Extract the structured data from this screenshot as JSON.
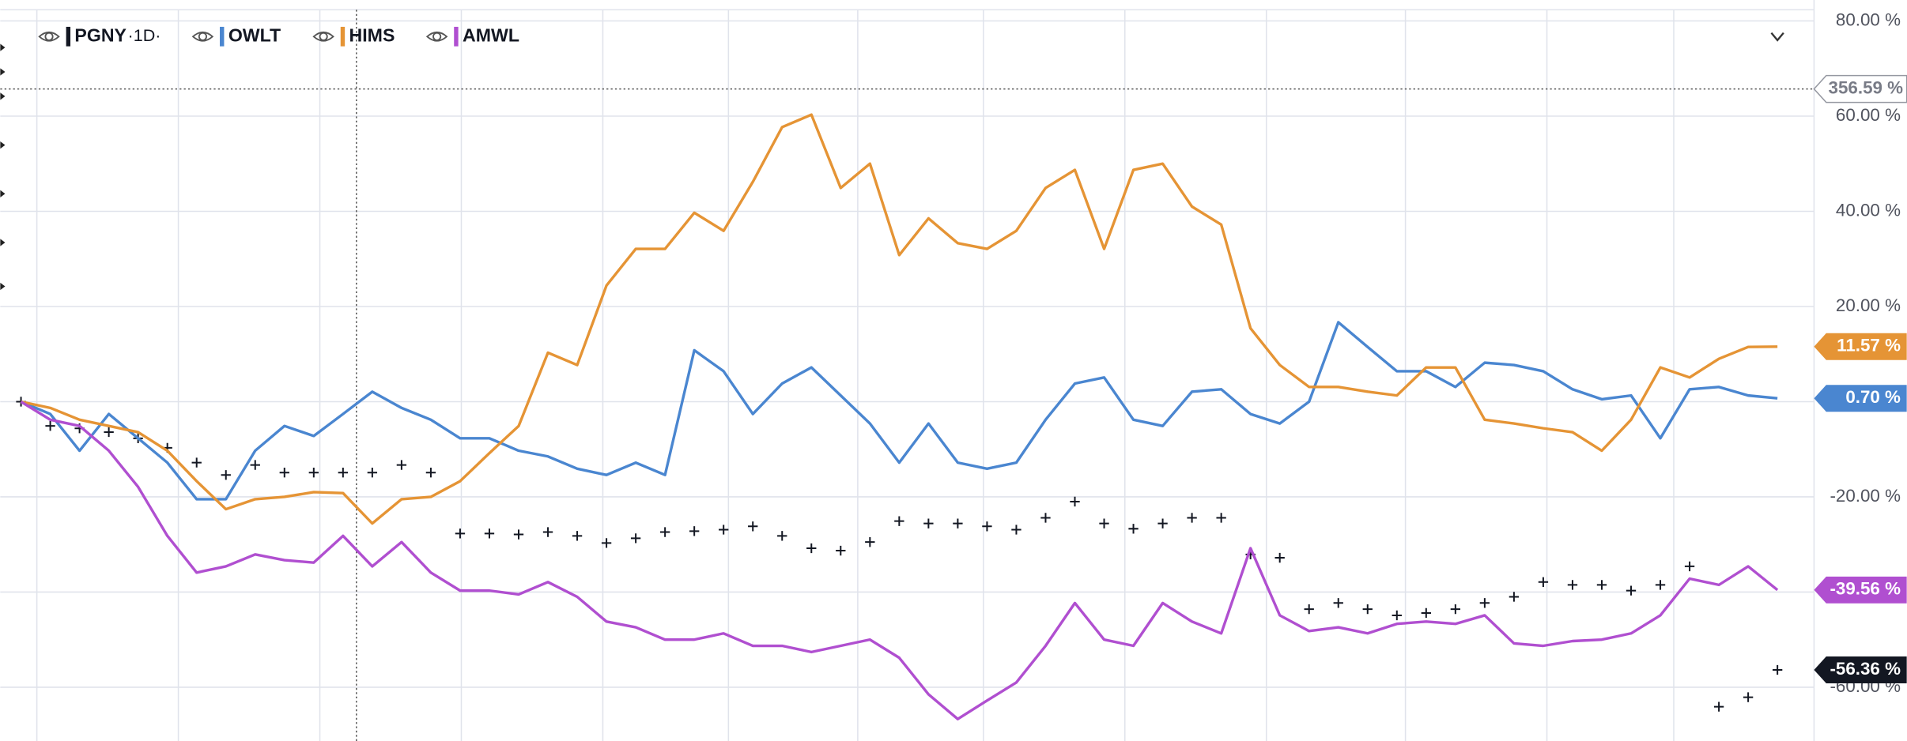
{
  "chart_data": {
    "type": "line",
    "interval": "·1D·",
    "crosshair_label": "356.59 %",
    "x": [
      0,
      1,
      2,
      3,
      4,
      5,
      6,
      7,
      8,
      9,
      10,
      11,
      12,
      13,
      14,
      15,
      16,
      17,
      18,
      19,
      20,
      21,
      22,
      23,
      24,
      25,
      26,
      27,
      28,
      29,
      30,
      31,
      32,
      33,
      34,
      35,
      36,
      37,
      38,
      39,
      40,
      41,
      42,
      43,
      44,
      45,
      46,
      47,
      48,
      49,
      50,
      51,
      52,
      53,
      54,
      55,
      56,
      57,
      58,
      59,
      60
    ],
    "xlim": [
      0,
      60
    ],
    "ylim": [
      -71.3,
      84.4
    ],
    "yticks": [
      {
        "value": 80,
        "label": "80.00 %"
      },
      {
        "value": 60,
        "label": "60.00 %"
      },
      {
        "value": 40,
        "label": "40.00 %"
      },
      {
        "value": 20,
        "label": "20.00 %"
      },
      {
        "value": 0,
        "label": "0.00 %"
      },
      {
        "value": -20,
        "label": "-20.00 %"
      },
      {
        "value": -40,
        "label": "-40.00 %"
      },
      {
        "value": -60,
        "label": "-60.00 %"
      }
    ],
    "grid": true,
    "series": [
      {
        "name": "PGNY",
        "color": "#131722",
        "style": "ticks",
        "last_value_label": "-56.36 %",
        "values": [
          0,
          -5.1,
          -5.6,
          -6.4,
          -7.7,
          -9.7,
          -12.8,
          -15.4,
          -13.3,
          -14.9,
          -14.9,
          -14.9,
          -14.9,
          -13.3,
          -14.9,
          -27.7,
          -27.7,
          -27.9,
          -27.4,
          -28.2,
          -29.7,
          -28.7,
          -27.4,
          -27.2,
          -26.9,
          -26.2,
          -28.2,
          -30.8,
          -31.3,
          -29.5,
          -25.1,
          -25.6,
          -25.6,
          -26.2,
          -26.9,
          -24.4,
          -21,
          -25.6,
          -26.7,
          -25.6,
          -24.4,
          -24.4,
          -32.1,
          -32.8,
          -43.6,
          -42.3,
          -43.6,
          -44.9,
          -44.4,
          -43.6,
          -42.3,
          -41,
          -37.9,
          -38.5,
          -38.5,
          -39.7,
          -38.5,
          -34.6,
          -64.1,
          -62.1,
          -56.36
        ]
      },
      {
        "name": "OWLT",
        "color": "#4a86d0",
        "style": "line",
        "last_value_label": "0.70 %",
        "values": [
          0,
          -2.6,
          -10.3,
          -2.6,
          -7.7,
          -12.8,
          -20.5,
          -20.5,
          -10.3,
          -5.1,
          -7.2,
          -2.6,
          2.1,
          -1.3,
          -3.8,
          -7.7,
          -7.7,
          -10.3,
          -11.5,
          -14.1,
          -15.4,
          -12.8,
          -15.4,
          10.8,
          6.4,
          -2.6,
          3.8,
          7.2,
          1.3,
          -4.6,
          -12.8,
          -4.6,
          -12.8,
          -14.1,
          -12.8,
          -3.8,
          3.8,
          5.1,
          -3.8,
          -5.1,
          2.1,
          2.6,
          -2.6,
          -4.6,
          0,
          16.7,
          11.5,
          6.4,
          6.4,
          3.1,
          8.2,
          7.7,
          6.4,
          2.6,
          0.5,
          1.3,
          -7.7,
          2.6,
          3.1,
          1.3,
          0.7
        ]
      },
      {
        "name": "HIMS",
        "color": "#e59435",
        "style": "line",
        "last_value_label": "11.57 %",
        "values": [
          0,
          -1.3,
          -3.8,
          -5.1,
          -6.4,
          -10.3,
          -16.7,
          -22.6,
          -20.5,
          -20,
          -19,
          -19.2,
          -25.6,
          -20.5,
          -20,
          -16.7,
          -10.8,
          -5.1,
          10.3,
          7.7,
          24.4,
          32.1,
          32.1,
          39.7,
          35.9,
          46.2,
          57.7,
          60.3,
          44.9,
          50,
          30.8,
          38.5,
          33.3,
          32.1,
          35.9,
          44.9,
          48.7,
          32.1,
          48.7,
          50,
          41,
          37.2,
          15.4,
          7.7,
          3.1,
          3.1,
          2.1,
          1.3,
          7.2,
          7.2,
          -3.8,
          -4.6,
          -5.6,
          -6.4,
          -10.3,
          -3.8,
          7.2,
          5.1,
          9,
          11.5,
          11.57
        ]
      },
      {
        "name": "AMWL",
        "color": "#b04fd0",
        "style": "line",
        "last_value_label": "-39.56 %",
        "values": [
          0,
          -3.8,
          -5.1,
          -10.3,
          -17.9,
          -28.2,
          -35.9,
          -34.6,
          -32.1,
          -33.3,
          -33.8,
          -28.2,
          -34.6,
          -29.5,
          -35.9,
          -39.7,
          -39.7,
          -40.5,
          -37.9,
          -41,
          -46.2,
          -47.4,
          -50,
          -50,
          -48.7,
          -51.3,
          -51.3,
          -52.6,
          -51.3,
          -50,
          -53.8,
          -61.5,
          -66.7,
          -62.8,
          -59,
          -51.3,
          -42.3,
          -50,
          -51.3,
          -42.3,
          -46.2,
          -48.7,
          -30.8,
          -44.9,
          -48.2,
          -47.4,
          -48.7,
          -46.7,
          -46.2,
          -46.7,
          -44.9,
          -50.8,
          -51.3,
          -50.3,
          -50,
          -48.7,
          -44.9,
          -37.2,
          -38.5,
          -34.6,
          -39.56
        ]
      }
    ]
  }
}
